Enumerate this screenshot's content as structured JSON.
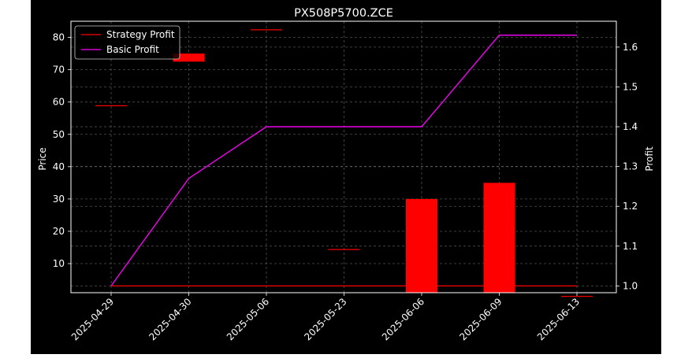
{
  "chart_data": {
    "type": "bar",
    "title": "PX508P5700.ZCE",
    "xlabel": "",
    "ylabel": "Price",
    "y2label": "Profit",
    "categories": [
      "2025-04-29",
      "2025-04-30",
      "2025-05-06",
      "2025-05-23",
      "2025-06-06",
      "2025-06-09",
      "2025-06-13"
    ],
    "candles": [
      {
        "date": "2025-04-29",
        "open": 59.0,
        "close": 59.0
      },
      {
        "date": "2025-04-30",
        "open": 75.0,
        "close": 72.5
      },
      {
        "date": "2025-05-06",
        "open": 82.5,
        "close": 82.5
      },
      {
        "date": "2025-05-23",
        "open": 14.5,
        "close": 14.5
      },
      {
        "date": "2025-06-06",
        "open": 30.0,
        "close": 0.0
      },
      {
        "date": "2025-06-09",
        "open": 35.0,
        "close": 0.0
      },
      {
        "date": "2025-06-13",
        "open": 0.0,
        "close": 0.0
      }
    ],
    "ylim": [
      1.0,
      85.0
    ],
    "yticks": [
      10,
      20,
      30,
      40,
      50,
      60,
      70,
      80
    ],
    "y2lim": [
      0.983,
      1.665
    ],
    "y2ticks": [
      1.0,
      1.1,
      1.2,
      1.3,
      1.4,
      1.5,
      1.6
    ],
    "series": [
      {
        "name": "Strategy Profit",
        "axis": "right",
        "color": "#ff0000",
        "values": [
          1.0,
          1.0,
          1.0,
          1.0,
          1.0,
          1.0,
          1.0
        ]
      },
      {
        "name": "Basic Profit",
        "axis": "right",
        "color": "#ff00ff",
        "values": [
          1.0,
          1.27,
          1.4,
          1.4,
          1.4,
          1.63,
          1.63
        ]
      }
    ],
    "bar_color": "#ff0000",
    "grid": true,
    "legend_position": "top-left"
  }
}
